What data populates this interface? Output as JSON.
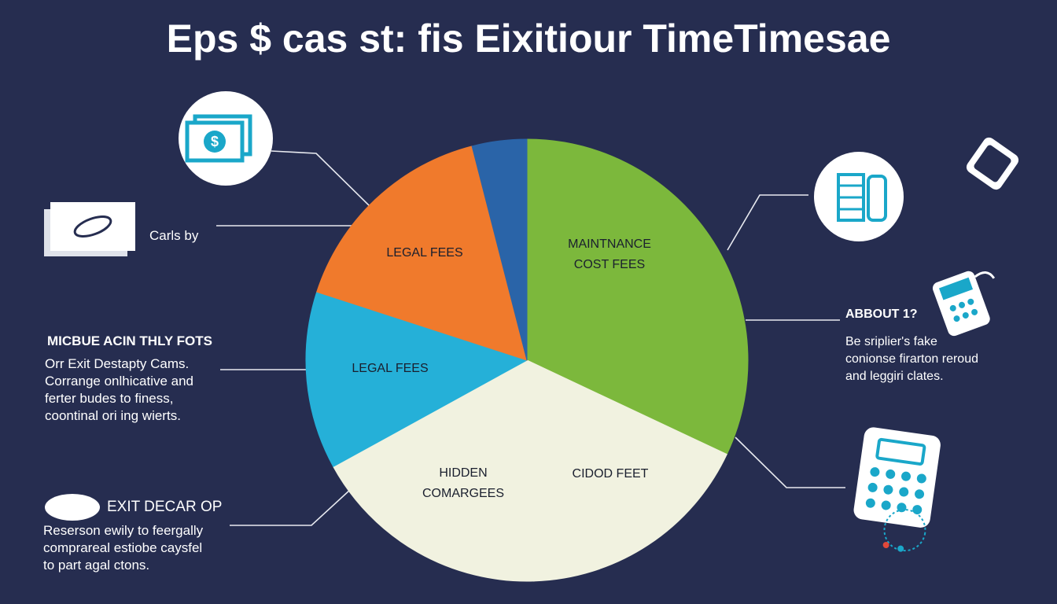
{
  "chart_data": {
    "type": "pie",
    "title": "Eps $ cas st: fis Eixitiour TimeTimesae",
    "categories": [
      "MAINTNANCE\nCOST FEES",
      "CIDOD FEET",
      "HIDDEN\nCOMARGEES",
      "LEGAL FEES",
      "LEGAL FEES",
      null
    ],
    "values": [
      32,
      17.5,
      17.5,
      13,
      16,
      4
    ],
    "colors": [
      "#7cb83c",
      "#f1f2e0",
      "#f1f2e0",
      "#25b0d8",
      "#f07a2c",
      "#2a64a8"
    ],
    "annotations": [
      "Carls by",
      "MICBUE ACIN THLY FOTS",
      "Orr Exit Destapty Cams.\nCorrange onlhicative and\nferter budes to finess,\ncoontinal ori ing wierts.",
      "EXIT DECAR OP",
      "Reserson ewily to feergally\ncomprareal estiobe caysfel\nto part agal ctons.",
      "ABBOUT 1?",
      "Be sriplier's fake\nconionse firarton reroud\nand leggiri clates."
    ]
  }
}
